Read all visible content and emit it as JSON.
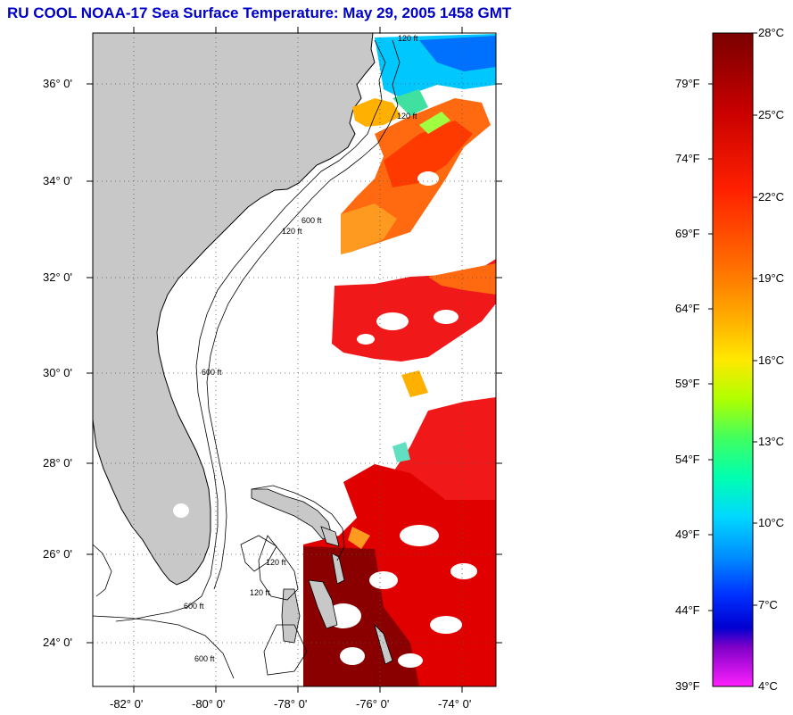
{
  "title": "RU COOL  NOAA-17  Sea Surface Temperature:  May 29, 2005 1458 GMT",
  "map": {
    "lat_ticks": [
      {
        "id": "36",
        "label": "36° 0'"
      },
      {
        "id": "34",
        "label": "34° 0'"
      },
      {
        "id": "32",
        "label": "32° 0'"
      },
      {
        "id": "30",
        "label": "30° 0'"
      },
      {
        "id": "28",
        "label": "28° 0'"
      },
      {
        "id": "26",
        "label": "26° 0'"
      },
      {
        "id": "24",
        "label": "24° 0'"
      }
    ],
    "lon_ticks": [
      {
        "id": "m82",
        "label": "-82° 0'"
      },
      {
        "id": "m80",
        "label": "-80° 0'"
      },
      {
        "id": "m78",
        "label": "-78° 0'"
      },
      {
        "id": "m76",
        "label": "-76° 0'"
      },
      {
        "id": "m74",
        "label": "-74° 0'"
      }
    ],
    "contour_labels": [
      "120 ft",
      "120 ft",
      "120 ft",
      "600 ft",
      "600 ft",
      "120 ft",
      "600 ft",
      "120 ft",
      "600 ft"
    ],
    "colors": {
      "land": "#c8c8c8",
      "ocean_nodata": "#ffffff",
      "coast": "#000000",
      "grid": "#555555"
    }
  },
  "colorbar": {
    "fahrenheit": [
      {
        "id": "79",
        "label": "79°F"
      },
      {
        "id": "74",
        "label": "74°F"
      },
      {
        "id": "69",
        "label": "69°F"
      },
      {
        "id": "64",
        "label": "64°F"
      },
      {
        "id": "59",
        "label": "59°F"
      },
      {
        "id": "54",
        "label": "54°F"
      },
      {
        "id": "49",
        "label": "49°F"
      },
      {
        "id": "44",
        "label": "44°F"
      },
      {
        "id": "39",
        "label": "39°F"
      }
    ],
    "celsius": [
      {
        "id": "28",
        "label": "28°C"
      },
      {
        "id": "25",
        "label": "25°C"
      },
      {
        "id": "22",
        "label": "22°C"
      },
      {
        "id": "19",
        "label": "19°C"
      },
      {
        "id": "16",
        "label": "16°C"
      },
      {
        "id": "13",
        "label": "13°C"
      },
      {
        "id": "10",
        "label": "10°C"
      },
      {
        "id": "7",
        "label": "7°C"
      },
      {
        "id": "4",
        "label": "4°C"
      }
    ],
    "gradient": [
      "#7a0000",
      "#c80000",
      "#ff2000",
      "#ff6000",
      "#ffa000",
      "#ffe000",
      "#c8ff00",
      "#60ff40",
      "#00ffa0",
      "#00e0ff",
      "#0090ff",
      "#0030ff",
      "#0000d0",
      "#8000c0",
      "#ff00ff"
    ]
  }
}
